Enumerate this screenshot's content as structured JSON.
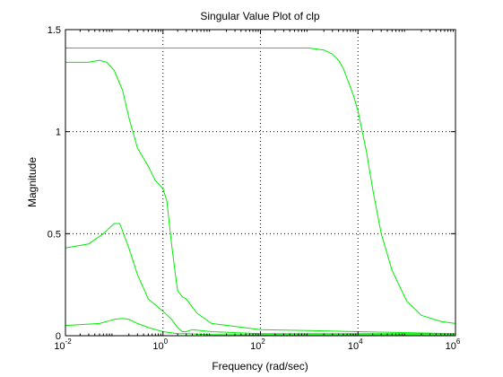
{
  "chart_data": {
    "type": "line",
    "title": "Singular Value Plot of clp",
    "xlabel": "Frequency (rad/sec)",
    "ylabel": "Magnitude",
    "xscale": "log",
    "xlim": [
      0.01,
      1000000
    ],
    "ylim": [
      0,
      1.5
    ],
    "grid": true,
    "grid_style": "dotted",
    "line_color": "#00ee00",
    "x_ticks": [
      {
        "base": "10",
        "exp": "-2"
      },
      {
        "base": "10",
        "exp": "0"
      },
      {
        "base": "10",
        "exp": "2"
      },
      {
        "base": "10",
        "exp": "4"
      },
      {
        "base": "10",
        "exp": "6"
      }
    ],
    "y_ticks": [
      "0",
      "0.5",
      "1",
      "1.5"
    ],
    "series": [
      {
        "x": [
          0.01,
          0.1,
          1,
          10,
          100,
          1000,
          2000,
          3000,
          4000,
          5000,
          6000,
          8000,
          10000,
          15000,
          20000,
          30000,
          50000,
          100000,
          200000,
          500000,
          1000000
        ],
        "y": [
          1.41,
          1.41,
          1.41,
          1.41,
          1.41,
          1.41,
          1.4,
          1.38,
          1.35,
          1.31,
          1.26,
          1.18,
          1.1,
          0.9,
          0.72,
          0.5,
          0.32,
          0.17,
          0.1,
          0.07,
          0.06
        ]
      },
      {
        "x": [
          0.01,
          0.03,
          0.05,
          0.07,
          0.1,
          0.15,
          0.2,
          0.3,
          0.5,
          0.7,
          1.0,
          1.2,
          1.5,
          1.8,
          2.0,
          2.5,
          3.0,
          4.0,
          5.0,
          10,
          100,
          1000,
          10000,
          100000,
          1000000
        ],
        "y": [
          1.34,
          1.34,
          1.35,
          1.34,
          1.3,
          1.2,
          1.07,
          0.92,
          0.83,
          0.76,
          0.72,
          0.66,
          0.45,
          0.3,
          0.22,
          0.19,
          0.18,
          0.14,
          0.11,
          0.06,
          0.03,
          0.025,
          0.02,
          0.015,
          0.01
        ]
      },
      {
        "x": [
          0.01,
          0.03,
          0.06,
          0.1,
          0.13,
          0.2,
          0.3,
          0.5,
          1.0,
          1.5,
          2.0,
          2.5,
          3.0,
          4.0,
          10,
          100,
          1000,
          10000,
          100000,
          1000000
        ],
        "y": [
          0.43,
          0.45,
          0.5,
          0.55,
          0.55,
          0.43,
          0.3,
          0.18,
          0.12,
          0.08,
          0.04,
          0.02,
          0.02,
          0.03,
          0.02,
          0.01,
          0.01,
          0.01,
          0.01,
          0.01
        ]
      },
      {
        "x": [
          0.01,
          0.05,
          0.1,
          0.15,
          0.2,
          0.3,
          0.5,
          1.0,
          2.0,
          3.0,
          10,
          100,
          1000,
          10000,
          100000,
          1000000
        ],
        "y": [
          0.05,
          0.06,
          0.08,
          0.085,
          0.08,
          0.06,
          0.04,
          0.02,
          0.01,
          0.01,
          0.005,
          0.005,
          0.005,
          0.005,
          0.005,
          0.005
        ]
      }
    ]
  }
}
